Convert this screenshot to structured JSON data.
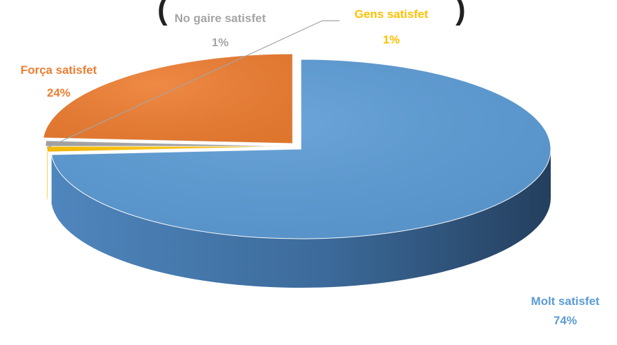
{
  "chart_data": {
    "type": "pie",
    "title": "(",
    "title_tail": ")",
    "categories": [
      "Molt satisfet",
      "Gens satisfet",
      "No gaire satisfet",
      "Força satisfet"
    ],
    "values": [
      74,
      1,
      1,
      24
    ],
    "value_labels": [
      "74%",
      "1%",
      "1%",
      "24%"
    ],
    "colors": [
      "#5b9bd5",
      "#ffc000",
      "#a5a5a5",
      "#ed7d31"
    ],
    "label_colors": [
      "#5b9bd5",
      "#ffc000",
      "#a5a5a5",
      "#ed7d31"
    ],
    "style": "3d-exploded-disc",
    "legend": "none"
  }
}
